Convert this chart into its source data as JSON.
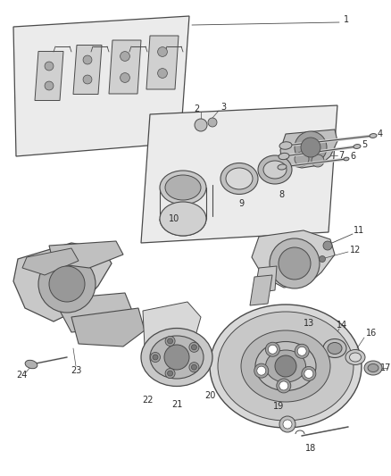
{
  "bg_color": "#f5f5f5",
  "fig_width": 4.38,
  "fig_height": 5.33,
  "dpi": 100,
  "line_color": "#4a4a4a",
  "text_color": "#2a2a2a",
  "font_size": 7.0,
  "image_url": "technical_diagram"
}
